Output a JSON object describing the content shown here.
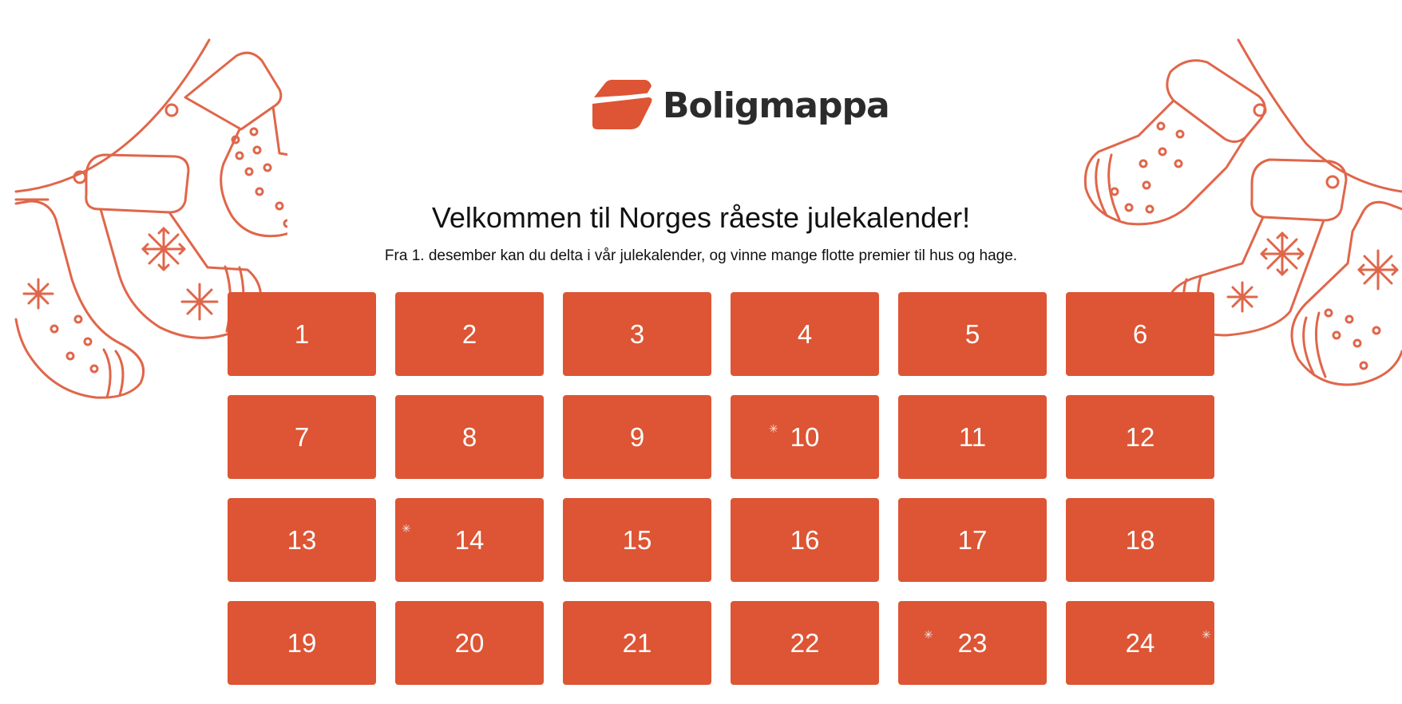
{
  "brand": {
    "name": "Boligmappa",
    "accent_color": "#dd5534",
    "line_color": "#e0664a"
  },
  "header": {
    "title": "Velkommen til Norges råeste julekalender!",
    "subtitle": "Fra 1. desember kan du delta i vår julekalender, og vinne mange flotte premier til hus og hage."
  },
  "calendar": {
    "doors": [
      "1",
      "2",
      "3",
      "4",
      "5",
      "6",
      "7",
      "8",
      "9",
      "10",
      "11",
      "12",
      "13",
      "14",
      "15",
      "16",
      "17",
      "18",
      "19",
      "20",
      "21",
      "22",
      "23",
      "24"
    ],
    "snowflake_doors": [
      "10",
      "14",
      "23",
      "24"
    ]
  },
  "decorations": {
    "left": "christmas-stockings-icon",
    "right": "christmas-stockings-icon"
  }
}
